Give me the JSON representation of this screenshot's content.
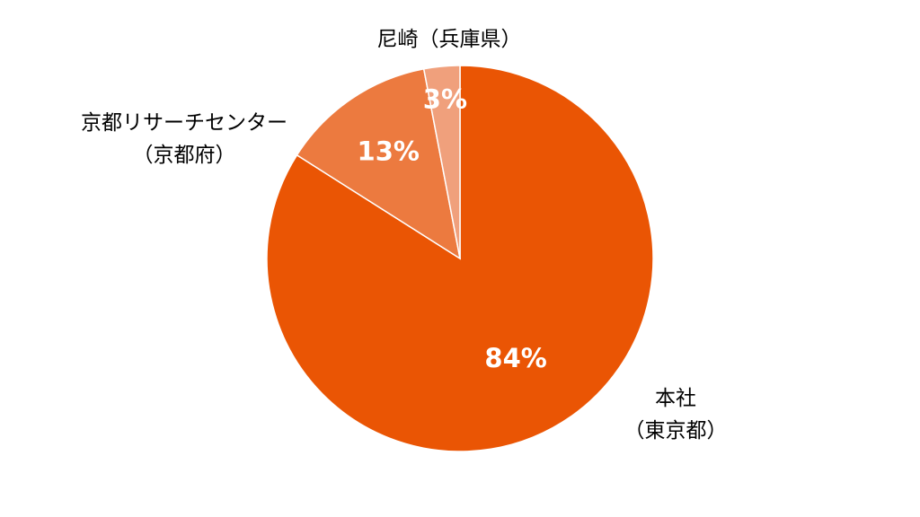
{
  "chart_data": {
    "type": "pie",
    "categories": [
      "本社\n（東京都）",
      "京都リサーチセンター\n（京都府）",
      "尼崎（兵庫県）"
    ],
    "values": [
      84,
      13,
      3
    ],
    "value_labels": [
      "84%",
      "13%",
      "3%"
    ],
    "colors": [
      "#ea5504",
      "#ec7a3f",
      "#f0a07c"
    ]
  }
}
